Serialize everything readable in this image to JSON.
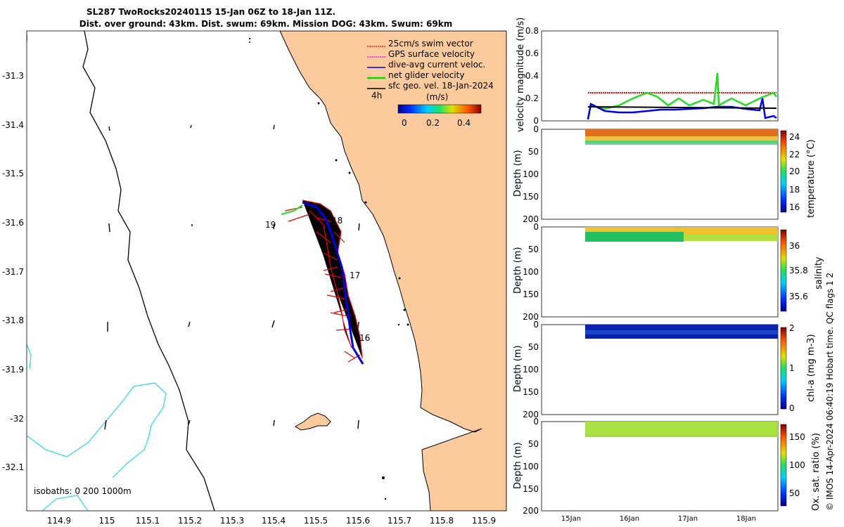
{
  "header": {
    "title_line1": "SL287 TwoRocks20240115 15-Jan 06Z to 18-Jan 11Z.",
    "title_line2": "Dist. over ground: 43km. Dist. swum: 69km. Mission DOG: 43km. Swum: 69km"
  },
  "map": {
    "x_ticks": [
      "114.9",
      "115",
      "115.1",
      "115.2",
      "115.3",
      "115.4",
      "115.5",
      "115.6",
      "115.7",
      "115.8",
      "115.9"
    ],
    "y_ticks": [
      "-31.3",
      "-31.4",
      "-31.5",
      "-31.6",
      "-31.7",
      "-31.8",
      "-31.9",
      "-32",
      "-32.1"
    ],
    "legend": [
      {
        "label": "25cm/s swim vector",
        "color": "#ff0000"
      },
      {
        "label": "GPS surface velocity",
        "color": "#ff00ff"
      },
      {
        "label": "dive-avg current veloc.",
        "color": "#0000ff"
      },
      {
        "label": "net glider velocity",
        "color": "#00dd00"
      },
      {
        "label": "sfc geo. vel. 18-Jan-2024",
        "color": "#000000"
      }
    ],
    "time_label": "4h",
    "colorbar_title": "(m/s)",
    "colorbar_ticks": [
      "0",
      "0.2",
      "0.4"
    ],
    "day_labels": [
      "19",
      "18",
      "17",
      "16"
    ],
    "isobaths_label": "isobaths: 0   200  1000m",
    "colors": {
      "land": "#fbcb9d",
      "isobath_200": "#000000",
      "isobath_1000": "#33dddd"
    }
  },
  "panels": {
    "velocity": {
      "ylabel": "velocity magnitude (m/s)",
      "y_ticks": [
        "0",
        "0.2",
        "0.4",
        "0.6",
        "0.8"
      ]
    },
    "temperature": {
      "ylabel": "Depth (m)",
      "cbar_label": "temperature (°C)",
      "cbar_ticks": [
        "24",
        "22",
        "20",
        "18",
        "16"
      ]
    },
    "salinity": {
      "ylabel": "Depth (m)",
      "cbar_label": "salinity",
      "cbar_ticks": [
        "36",
        "35.8",
        "35.6"
      ]
    },
    "chla": {
      "ylabel": "Depth (m)",
      "cbar_label": "chl-a (mg m-3)",
      "cbar_ticks": [
        "2",
        "1",
        "0"
      ]
    },
    "oxygen": {
      "ylabel": "Depth (m)",
      "cbar_label": "Ox. sat. ratio (%)",
      "cbar_ticks": [
        "150",
        "100",
        "50"
      ]
    },
    "depth_ticks": [
      "0",
      "50",
      "100",
      "150",
      "200"
    ],
    "time_ticks": [
      "15Jan",
      "16Jan",
      "17Jan",
      "18Jan"
    ]
  },
  "footer": {
    "credit": "© IMOS 14-Apr-2024 06:40:19 Hobart time. QC flags 1  2"
  }
}
